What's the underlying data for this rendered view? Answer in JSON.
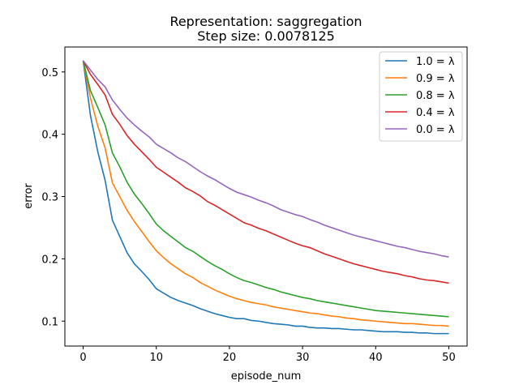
{
  "chart_data": {
    "type": "line",
    "title": "Representation: saggregation",
    "subtitle": "Step size: 0.0078125",
    "xlabel": "episode_num",
    "ylabel": "error",
    "xlim": [
      -2.5,
      52.5
    ],
    "ylim": [
      0.06,
      0.54
    ],
    "xticks": [
      0,
      10,
      20,
      30,
      40,
      50
    ],
    "yticks": [
      0.1,
      0.2,
      0.3,
      0.4,
      0.5
    ],
    "ytick_labels": [
      "0.1",
      "0.2",
      "0.3",
      "0.4",
      "0.5"
    ],
    "grid": false,
    "legend_position": "top-right",
    "x": [
      0,
      1,
      2,
      3,
      4,
      5,
      6,
      7,
      8,
      9,
      10,
      11,
      12,
      13,
      14,
      15,
      16,
      17,
      18,
      19,
      20,
      21,
      22,
      23,
      24,
      25,
      26,
      27,
      28,
      29,
      30,
      31,
      32,
      33,
      34,
      35,
      36,
      37,
      38,
      39,
      40,
      41,
      42,
      43,
      44,
      45,
      46,
      47,
      48,
      49,
      50
    ],
    "series": [
      {
        "name": "1.0 = λ",
        "color": "#1f77b4",
        "values": [
          0.518,
          0.43,
          0.372,
          0.326,
          0.262,
          0.236,
          0.21,
          0.192,
          0.18,
          0.167,
          0.152,
          0.145,
          0.138,
          0.133,
          0.129,
          0.125,
          0.12,
          0.116,
          0.112,
          0.109,
          0.106,
          0.104,
          0.104,
          0.101,
          0.1,
          0.098,
          0.096,
          0.095,
          0.094,
          0.092,
          0.092,
          0.09,
          0.089,
          0.089,
          0.088,
          0.088,
          0.087,
          0.086,
          0.086,
          0.085,
          0.084,
          0.083,
          0.083,
          0.083,
          0.082,
          0.082,
          0.081,
          0.081,
          0.08,
          0.08,
          0.08
        ]
      },
      {
        "name": "0.9 = λ",
        "color": "#ff7f0e",
        "values": [
          0.518,
          0.458,
          0.413,
          0.378,
          0.322,
          0.3,
          0.278,
          0.26,
          0.244,
          0.228,
          0.213,
          0.202,
          0.192,
          0.184,
          0.176,
          0.17,
          0.162,
          0.156,
          0.15,
          0.145,
          0.14,
          0.136,
          0.133,
          0.13,
          0.128,
          0.126,
          0.123,
          0.121,
          0.119,
          0.117,
          0.115,
          0.113,
          0.112,
          0.11,
          0.108,
          0.107,
          0.105,
          0.104,
          0.102,
          0.101,
          0.1,
          0.099,
          0.098,
          0.097,
          0.096,
          0.096,
          0.095,
          0.094,
          0.093,
          0.093,
          0.092
        ]
      },
      {
        "name": "0.8 = λ",
        "color": "#2ca02c",
        "values": [
          0.518,
          0.47,
          0.443,
          0.415,
          0.37,
          0.348,
          0.323,
          0.304,
          0.289,
          0.273,
          0.256,
          0.245,
          0.236,
          0.227,
          0.218,
          0.212,
          0.204,
          0.196,
          0.189,
          0.183,
          0.176,
          0.17,
          0.165,
          0.162,
          0.158,
          0.154,
          0.151,
          0.147,
          0.144,
          0.141,
          0.138,
          0.136,
          0.133,
          0.131,
          0.129,
          0.127,
          0.125,
          0.123,
          0.121,
          0.119,
          0.117,
          0.116,
          0.115,
          0.114,
          0.113,
          0.112,
          0.111,
          0.11,
          0.109,
          0.108,
          0.107
        ]
      },
      {
        "name": "0.4 = λ",
        "color": "#d62728",
        "values": [
          0.518,
          0.496,
          0.48,
          0.463,
          0.432,
          0.416,
          0.398,
          0.384,
          0.372,
          0.36,
          0.347,
          0.339,
          0.331,
          0.323,
          0.314,
          0.308,
          0.301,
          0.292,
          0.286,
          0.279,
          0.272,
          0.265,
          0.258,
          0.254,
          0.249,
          0.245,
          0.24,
          0.235,
          0.23,
          0.225,
          0.221,
          0.218,
          0.213,
          0.208,
          0.204,
          0.2,
          0.196,
          0.192,
          0.189,
          0.186,
          0.183,
          0.18,
          0.178,
          0.176,
          0.173,
          0.171,
          0.168,
          0.166,
          0.165,
          0.163,
          0.161
        ]
      },
      {
        "name": "0.0 = λ",
        "color": "#9467bd",
        "values": [
          0.518,
          0.503,
          0.488,
          0.476,
          0.455,
          0.44,
          0.426,
          0.415,
          0.405,
          0.396,
          0.384,
          0.377,
          0.37,
          0.362,
          0.356,
          0.348,
          0.34,
          0.333,
          0.327,
          0.32,
          0.313,
          0.307,
          0.303,
          0.299,
          0.294,
          0.29,
          0.285,
          0.279,
          0.275,
          0.271,
          0.268,
          0.263,
          0.259,
          0.254,
          0.25,
          0.246,
          0.242,
          0.238,
          0.235,
          0.232,
          0.229,
          0.226,
          0.223,
          0.22,
          0.218,
          0.215,
          0.212,
          0.21,
          0.208,
          0.205,
          0.203
        ]
      }
    ]
  }
}
